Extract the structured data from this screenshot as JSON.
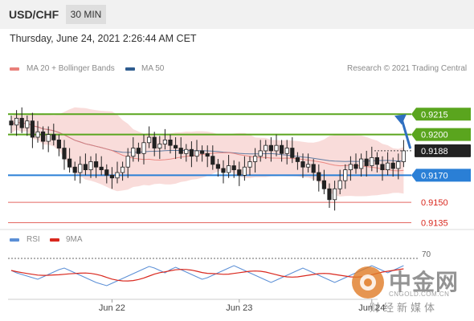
{
  "header": {
    "symbol": "USD/CHF",
    "timeframe": "30 MIN",
    "datetime": "Thursday, June 24, 2021 2:26:44 AM CET"
  },
  "legend": {
    "bollinger": {
      "label": "MA 20 + Bollinger Bands",
      "color": "#e9807a"
    },
    "ma50": {
      "label": "MA 50",
      "color": "#2f5c8f"
    },
    "rsi": {
      "label": "RSI",
      "color": "#5b8fd6"
    },
    "rsi_ma": {
      "label": "9MA",
      "color": "#d9281e"
    },
    "credit": "Research © 2021 Trading Central"
  },
  "watermark": {
    "title": "中金网",
    "url": "CNGOLD.COM.CN",
    "subtitle": "财经新媒体"
  },
  "chart_data": {
    "type": "candlestick",
    "price_range": [
      0.913,
      0.924
    ],
    "x_labels": [
      {
        "label": "Jun 22",
        "index": 19
      },
      {
        "label": "Jun 23",
        "index": 43
      },
      {
        "label": "Jun 24",
        "index": 68
      }
    ],
    "levels": [
      {
        "label": "0.9215",
        "value": 0.9215,
        "kind": "resistance",
        "color": "#5aa51e"
      },
      {
        "label": "0.9200",
        "value": 0.92,
        "kind": "resistance",
        "color": "#5aa51e"
      },
      {
        "label": "0.9188",
        "value": 0.9188,
        "kind": "current",
        "color": "#222222"
      },
      {
        "label": "0.9170",
        "value": 0.917,
        "kind": "pivot",
        "color": "#2a7fd6"
      },
      {
        "label": "0.9150",
        "value": 0.915,
        "kind": "support",
        "color": "#d9281e"
      },
      {
        "label": "0.9135",
        "value": 0.9135,
        "kind": "support",
        "color": "#d9281e"
      }
    ],
    "closes": [
      0.9207,
      0.9212,
      0.9205,
      0.921,
      0.9198,
      0.9202,
      0.9195,
      0.92,
      0.9196,
      0.919,
      0.9182,
      0.9176,
      0.9172,
      0.9178,
      0.9174,
      0.918,
      0.9176,
      0.9174,
      0.917,
      0.9168,
      0.9172,
      0.9176,
      0.9184,
      0.919,
      0.9186,
      0.9194,
      0.9198,
      0.919,
      0.9193,
      0.9196,
      0.9192,
      0.919,
      0.9186,
      0.9189,
      0.9184,
      0.9188,
      0.9186,
      0.9184,
      0.9178,
      0.9175,
      0.9172,
      0.9177,
      0.9174,
      0.917,
      0.9176,
      0.918,
      0.9184,
      0.9188,
      0.9192,
      0.9188,
      0.9192,
      0.9186,
      0.919,
      0.9183,
      0.918,
      0.9176,
      0.9178,
      0.9172,
      0.9166,
      0.916,
      0.9152,
      0.916,
      0.9166,
      0.9174,
      0.9178,
      0.9175,
      0.9182,
      0.9177,
      0.9183,
      0.9178,
      0.9174,
      0.9179,
      0.9175,
      0.918,
      0.9188
    ],
    "rsi": {
      "range": [
        20,
        80
      ],
      "level_label": "70",
      "level": 70,
      "values": [
        55,
        52,
        50,
        48,
        46,
        44,
        47,
        50,
        53,
        56,
        58,
        55,
        52,
        49,
        46,
        43,
        40,
        38,
        36,
        39,
        42,
        45,
        48,
        51,
        54,
        57,
        60,
        58,
        55,
        52,
        56,
        59,
        56,
        53,
        50,
        47,
        44,
        46,
        49,
        52,
        55,
        58,
        61,
        58,
        55,
        52,
        49,
        46,
        43,
        40,
        43,
        46,
        49,
        52,
        55,
        58,
        55,
        52,
        49,
        46,
        43,
        40,
        43,
        46,
        49,
        52,
        55,
        58,
        61,
        58,
        55,
        52,
        55,
        58,
        61
      ]
    }
  }
}
